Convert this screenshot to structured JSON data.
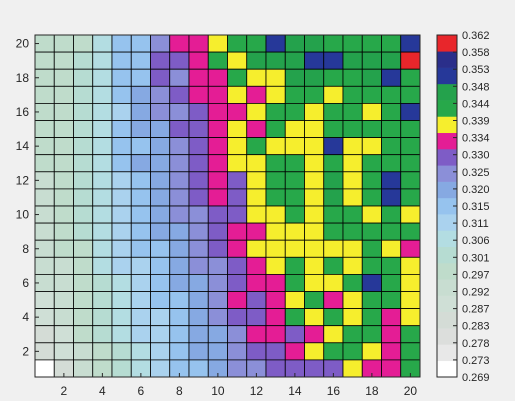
{
  "chart_data": {
    "type": "heatmap",
    "title": "",
    "xlabel": "",
    "ylabel": "",
    "x_ticks": [
      "2",
      "4",
      "6",
      "8",
      "10",
      "12",
      "14",
      "16",
      "18",
      "20"
    ],
    "y_ticks": [
      "2",
      "4",
      "6",
      "8",
      "10",
      "12",
      "14",
      "16",
      "18",
      "20"
    ],
    "xlim": [
      0.5,
      20.5
    ],
    "ylim": [
      0.5,
      20.5
    ],
    "grid": false,
    "colorbar": {
      "ticks": [
        "0.269",
        "0.273",
        "0.278",
        "0.283",
        "0.287",
        "0.292",
        "0.297",
        "0.301",
        "0.306",
        "0.311",
        "0.315",
        "0.320",
        "0.325",
        "0.330",
        "0.334",
        "0.339",
        "0.344",
        "0.348",
        "0.353",
        "0.358",
        "0.362"
      ],
      "range": [
        0.269,
        0.362
      ],
      "colors": [
        "#ffffff",
        "#e8e8e8",
        "#dcdedc",
        "#d4dcd6",
        "#cfdfd6",
        "#c8ddd1",
        "#bfdccb",
        "#b6dcd2",
        "#b3dde2",
        "#aad2ee",
        "#96c3ee",
        "#86a9e2",
        "#8b8fd8",
        "#7e5cc6",
        "#e41d95",
        "#f6ee2d",
        "#27a84a",
        "#24a24c",
        "#263899",
        "#2a2e8a",
        "#e8262b"
      ],
      "placement": "right"
    },
    "rows_top_to_bottom": [
      [
        0.297,
        0.296,
        0.297,
        0.305,
        0.314,
        0.317,
        0.327,
        0.334,
        0.334,
        0.339,
        0.344,
        0.344,
        0.353,
        0.348,
        0.348,
        0.344,
        0.344,
        0.344,
        0.344,
        0.353
      ],
      [
        0.297,
        0.297,
        0.301,
        0.306,
        0.315,
        0.316,
        0.33,
        0.329,
        0.333,
        0.344,
        0.339,
        0.348,
        0.348,
        0.348,
        0.353,
        0.353,
        0.35,
        0.348,
        0.348,
        0.36
      ],
      [
        0.296,
        0.298,
        0.301,
        0.305,
        0.314,
        0.315,
        0.328,
        0.326,
        0.334,
        0.333,
        0.345,
        0.338,
        0.34,
        0.347,
        0.347,
        0.345,
        0.344,
        0.348,
        0.353,
        0.344
      ],
      [
        0.297,
        0.296,
        0.303,
        0.305,
        0.314,
        0.318,
        0.324,
        0.33,
        0.334,
        0.333,
        0.339,
        0.333,
        0.339,
        0.344,
        0.344,
        0.339,
        0.344,
        0.344,
        0.344,
        0.344
      ],
      [
        0.296,
        0.297,
        0.301,
        0.307,
        0.313,
        0.318,
        0.323,
        0.326,
        0.33,
        0.333,
        0.335,
        0.339,
        0.344,
        0.344,
        0.339,
        0.344,
        0.344,
        0.339,
        0.344,
        0.353
      ],
      [
        0.297,
        0.297,
        0.303,
        0.306,
        0.315,
        0.318,
        0.322,
        0.328,
        0.329,
        0.334,
        0.339,
        0.333,
        0.344,
        0.339,
        0.339,
        0.344,
        0.344,
        0.344,
        0.344,
        0.344
      ],
      [
        0.295,
        0.297,
        0.301,
        0.306,
        0.314,
        0.317,
        0.321,
        0.327,
        0.329,
        0.332,
        0.339,
        0.344,
        0.339,
        0.339,
        0.339,
        0.353,
        0.339,
        0.339,
        0.344,
        0.344
      ],
      [
        0.295,
        0.298,
        0.3,
        0.305,
        0.314,
        0.318,
        0.321,
        0.324,
        0.328,
        0.334,
        0.339,
        0.339,
        0.344,
        0.344,
        0.339,
        0.344,
        0.339,
        0.344,
        0.344,
        0.344
      ],
      [
        0.294,
        0.296,
        0.3,
        0.305,
        0.312,
        0.317,
        0.32,
        0.323,
        0.329,
        0.334,
        0.331,
        0.339,
        0.344,
        0.344,
        0.339,
        0.348,
        0.339,
        0.344,
        0.353,
        0.344
      ],
      [
        0.294,
        0.296,
        0.3,
        0.305,
        0.313,
        0.317,
        0.32,
        0.323,
        0.329,
        0.334,
        0.331,
        0.339,
        0.344,
        0.344,
        0.339,
        0.348,
        0.339,
        0.344,
        0.353,
        0.344
      ],
      [
        0.293,
        0.297,
        0.3,
        0.304,
        0.312,
        0.316,
        0.318,
        0.323,
        0.327,
        0.331,
        0.331,
        0.339,
        0.339,
        0.344,
        0.339,
        0.344,
        0.344,
        0.339,
        0.344,
        0.339
      ],
      [
        0.292,
        0.295,
        0.3,
        0.305,
        0.311,
        0.314,
        0.318,
        0.321,
        0.325,
        0.331,
        0.334,
        0.334,
        0.339,
        0.339,
        0.339,
        0.344,
        0.344,
        0.344,
        0.344,
        0.344
      ],
      [
        0.292,
        0.295,
        0.299,
        0.305,
        0.311,
        0.314,
        0.316,
        0.32,
        0.325,
        0.328,
        0.334,
        0.339,
        0.339,
        0.339,
        0.339,
        0.339,
        0.339,
        0.344,
        0.339,
        0.334
      ],
      [
        0.291,
        0.294,
        0.299,
        0.304,
        0.309,
        0.313,
        0.316,
        0.32,
        0.323,
        0.326,
        0.33,
        0.334,
        0.339,
        0.344,
        0.339,
        0.344,
        0.339,
        0.344,
        0.344,
        0.339
      ],
      [
        0.29,
        0.293,
        0.298,
        0.303,
        0.308,
        0.313,
        0.315,
        0.318,
        0.322,
        0.326,
        0.33,
        0.334,
        0.334,
        0.344,
        0.339,
        0.339,
        0.344,
        0.353,
        0.344,
        0.339
      ],
      [
        0.289,
        0.292,
        0.297,
        0.302,
        0.307,
        0.312,
        0.314,
        0.317,
        0.321,
        0.323,
        0.334,
        0.33,
        0.334,
        0.339,
        0.344,
        0.334,
        0.339,
        0.344,
        0.344,
        0.339
      ],
      [
        0.287,
        0.291,
        0.296,
        0.301,
        0.306,
        0.311,
        0.313,
        0.316,
        0.32,
        0.324,
        0.328,
        0.329,
        0.334,
        0.344,
        0.339,
        0.344,
        0.339,
        0.344,
        0.334,
        0.339
      ],
      [
        0.285,
        0.289,
        0.295,
        0.3,
        0.305,
        0.31,
        0.312,
        0.315,
        0.319,
        0.322,
        0.326,
        0.334,
        0.334,
        0.33,
        0.334,
        0.339,
        0.344,
        0.344,
        0.334,
        0.344
      ],
      [
        0.282,
        0.287,
        0.293,
        0.299,
        0.303,
        0.308,
        0.311,
        0.315,
        0.318,
        0.321,
        0.325,
        0.328,
        0.33,
        0.334,
        0.34,
        0.344,
        0.344,
        0.339,
        0.334,
        0.344
      ],
      [
        0.269,
        0.284,
        0.291,
        0.297,
        0.302,
        0.306,
        0.31,
        0.314,
        0.317,
        0.32,
        0.324,
        0.327,
        0.33,
        0.328,
        0.33,
        0.33,
        0.34,
        0.334,
        0.334,
        0.344
      ]
    ]
  }
}
